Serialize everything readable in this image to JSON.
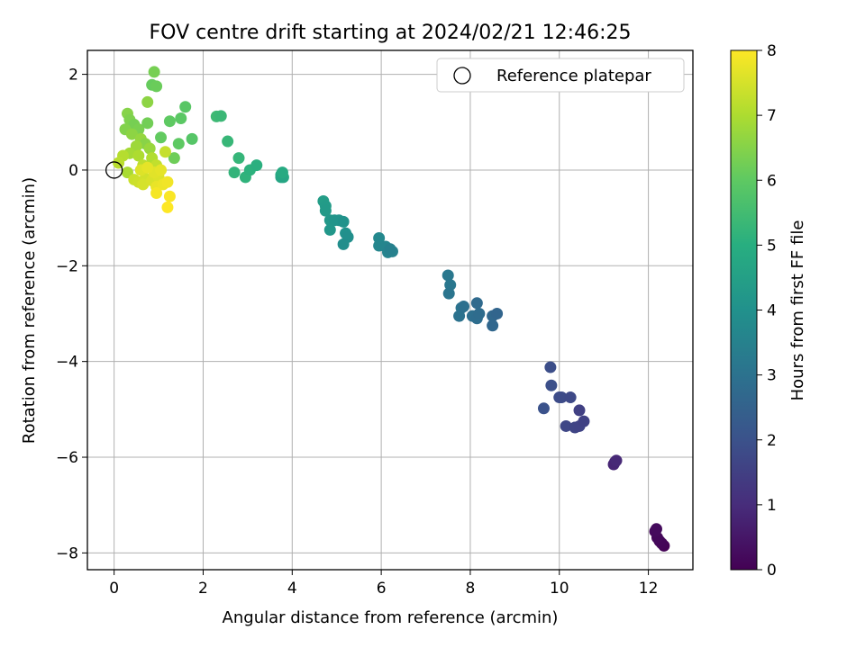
{
  "chart_data": {
    "type": "scatter",
    "title": "FOV centre drift starting at 2024/02/21 12:46:25",
    "xlabel": "Angular distance from reference (arcmin)",
    "ylabel": "Rotation from reference (arcmin)",
    "xlim": [
      -0.6,
      13.0
    ],
    "ylim": [
      -8.35,
      2.5
    ],
    "xticks": [
      0,
      2,
      4,
      6,
      8,
      10,
      12
    ],
    "xtick_labels": [
      "0",
      "2",
      "4",
      "6",
      "8",
      "10",
      "12"
    ],
    "yticks": [
      2,
      0,
      -2,
      -4,
      -6,
      -8
    ],
    "ytick_labels": [
      "2",
      "0",
      "−2",
      "−4",
      "−6",
      "−8"
    ],
    "grid": true,
    "legend": {
      "placement": "top-right",
      "entries": [
        "Reference platepar"
      ]
    },
    "reference_point": {
      "x": 0,
      "y": 0,
      "label": "Reference platepar"
    },
    "colorbar": {
      "label": "Hours from first FF file",
      "range": [
        0,
        8
      ],
      "ticks": [
        "0",
        "1",
        "2",
        "3",
        "4",
        "5",
        "6",
        "7",
        "8"
      ],
      "colormap": [
        "#440154",
        "#472d7b",
        "#3b528b",
        "#2c728e",
        "#21918c",
        "#28ae80",
        "#5ec962",
        "#addc30",
        "#fde725"
      ]
    },
    "points": [
      {
        "x": 12.35,
        "y": -7.85,
        "c": 0.05
      },
      {
        "x": 12.3,
        "y": -7.8,
        "c": 0.1
      },
      {
        "x": 12.25,
        "y": -7.75,
        "c": 0.12
      },
      {
        "x": 12.2,
        "y": -7.68,
        "c": 0.15
      },
      {
        "x": 12.15,
        "y": -7.55,
        "c": 0.2
      },
      {
        "x": 12.18,
        "y": -7.5,
        "c": 0.22
      },
      {
        "x": 11.25,
        "y": -6.1,
        "c": 0.8
      },
      {
        "x": 11.22,
        "y": -6.15,
        "c": 0.85
      },
      {
        "x": 11.28,
        "y": -6.07,
        "c": 0.9
      },
      {
        "x": 9.8,
        "y": -4.12,
        "c": 1.9
      },
      {
        "x": 9.82,
        "y": -4.5,
        "c": 1.95
      },
      {
        "x": 9.65,
        "y": -4.98,
        "c": 2.0
      },
      {
        "x": 10.0,
        "y": -4.75,
        "c": 1.85
      },
      {
        "x": 10.05,
        "y": -4.75,
        "c": 1.8
      },
      {
        "x": 10.25,
        "y": -4.75,
        "c": 1.75
      },
      {
        "x": 10.15,
        "y": -5.35,
        "c": 1.7
      },
      {
        "x": 10.35,
        "y": -5.38,
        "c": 1.65
      },
      {
        "x": 10.45,
        "y": -5.35,
        "c": 1.6
      },
      {
        "x": 10.55,
        "y": -5.25,
        "c": 1.55
      },
      {
        "x": 10.45,
        "y": -5.02,
        "c": 1.5
      },
      {
        "x": 7.5,
        "y": -2.2,
        "c": 3.2
      },
      {
        "x": 7.55,
        "y": -2.4,
        "c": 3.15
      },
      {
        "x": 7.52,
        "y": -2.58,
        "c": 3.1
      },
      {
        "x": 7.8,
        "y": -2.88,
        "c": 3.05
      },
      {
        "x": 7.75,
        "y": -3.05,
        "c": 3.0
      },
      {
        "x": 7.85,
        "y": -2.85,
        "c": 2.95
      },
      {
        "x": 8.05,
        "y": -3.05,
        "c": 2.9
      },
      {
        "x": 8.15,
        "y": -3.1,
        "c": 2.85
      },
      {
        "x": 8.2,
        "y": -3.0,
        "c": 2.8
      },
      {
        "x": 8.15,
        "y": -2.78,
        "c": 2.75
      },
      {
        "x": 8.5,
        "y": -3.05,
        "c": 2.7
      },
      {
        "x": 8.5,
        "y": -3.25,
        "c": 2.65
      },
      {
        "x": 8.6,
        "y": -3.0,
        "c": 2.6
      },
      {
        "x": 5.95,
        "y": -1.42,
        "c": 3.7
      },
      {
        "x": 5.95,
        "y": -1.58,
        "c": 3.65
      },
      {
        "x": 6.1,
        "y": -1.6,
        "c": 3.6
      },
      {
        "x": 6.15,
        "y": -1.72,
        "c": 3.55
      },
      {
        "x": 6.25,
        "y": -1.7,
        "c": 3.5
      },
      {
        "x": 6.2,
        "y": -1.65,
        "c": 3.45
      },
      {
        "x": 4.7,
        "y": -0.65,
        "c": 4.4
      },
      {
        "x": 4.75,
        "y": -0.75,
        "c": 4.35
      },
      {
        "x": 4.75,
        "y": -0.85,
        "c": 4.3
      },
      {
        "x": 4.85,
        "y": -1.05,
        "c": 4.25
      },
      {
        "x": 4.85,
        "y": -1.25,
        "c": 4.2
      },
      {
        "x": 4.95,
        "y": -1.05,
        "c": 4.15
      },
      {
        "x": 5.05,
        "y": -1.05,
        "c": 4.1
      },
      {
        "x": 5.15,
        "y": -1.08,
        "c": 4.05
      },
      {
        "x": 5.2,
        "y": -1.32,
        "c": 4.0
      },
      {
        "x": 5.25,
        "y": -1.4,
        "c": 3.95
      },
      {
        "x": 5.15,
        "y": -1.55,
        "c": 3.9
      },
      {
        "x": 3.75,
        "y": -0.1,
        "c": 4.8
      },
      {
        "x": 3.8,
        "y": -0.15,
        "c": 4.75
      },
      {
        "x": 3.75,
        "y": -0.15,
        "c": 4.7
      },
      {
        "x": 3.78,
        "y": -0.05,
        "c": 4.85
      },
      {
        "x": 2.3,
        "y": 1.12,
        "c": 5.4
      },
      {
        "x": 2.4,
        "y": 1.13,
        "c": 5.35
      },
      {
        "x": 2.55,
        "y": 0.6,
        "c": 5.3
      },
      {
        "x": 2.8,
        "y": 0.25,
        "c": 5.25
      },
      {
        "x": 2.7,
        "y": -0.05,
        "c": 5.2
      },
      {
        "x": 2.95,
        "y": -0.15,
        "c": 5.15
      },
      {
        "x": 3.05,
        "y": 0.0,
        "c": 5.1
      },
      {
        "x": 3.2,
        "y": 0.1,
        "c": 5.05
      },
      {
        "x": 0.9,
        "y": 2.05,
        "c": 6.3
      },
      {
        "x": 0.85,
        "y": 1.78,
        "c": 6.1
      },
      {
        "x": 0.95,
        "y": 1.75,
        "c": 6.15
      },
      {
        "x": 0.75,
        "y": 1.42,
        "c": 6.6
      },
      {
        "x": 1.6,
        "y": 1.32,
        "c": 5.9
      },
      {
        "x": 1.5,
        "y": 1.08,
        "c": 5.95
      },
      {
        "x": 1.25,
        "y": 1.02,
        "c": 6.0
      },
      {
        "x": 1.05,
        "y": 0.68,
        "c": 6.05
      },
      {
        "x": 1.45,
        "y": 0.55,
        "c": 6.0
      },
      {
        "x": 1.75,
        "y": 0.65,
        "c": 5.85
      },
      {
        "x": 1.35,
        "y": 0.25,
        "c": 6.2
      },
      {
        "x": 0.3,
        "y": 1.18,
        "c": 6.5
      },
      {
        "x": 0.35,
        "y": 1.05,
        "c": 6.4
      },
      {
        "x": 0.45,
        "y": 0.95,
        "c": 6.3
      },
      {
        "x": 0.55,
        "y": 0.85,
        "c": 6.35
      },
      {
        "x": 0.75,
        "y": 0.98,
        "c": 6.25
      },
      {
        "x": 0.25,
        "y": 0.85,
        "c": 6.45
      },
      {
        "x": 0.4,
        "y": 0.75,
        "c": 6.6
      },
      {
        "x": 0.6,
        "y": 0.65,
        "c": 6.7
      },
      {
        "x": 0.7,
        "y": 0.55,
        "c": 6.55
      },
      {
        "x": 0.5,
        "y": 0.5,
        "c": 6.8
      },
      {
        "x": 0.8,
        "y": 0.45,
        "c": 6.75
      },
      {
        "x": 0.35,
        "y": 0.35,
        "c": 6.9
      },
      {
        "x": 0.55,
        "y": 0.3,
        "c": 7.0
      },
      {
        "x": 0.85,
        "y": 0.25,
        "c": 7.05
      },
      {
        "x": 0.2,
        "y": 0.3,
        "c": 7.1
      },
      {
        "x": 0.1,
        "y": 0.15,
        "c": 7.15
      },
      {
        "x": 0.3,
        "y": -0.05,
        "c": 6.95
      },
      {
        "x": 0.65,
        "y": 0.1,
        "c": 7.2
      },
      {
        "x": 0.95,
        "y": 0.1,
        "c": 7.25
      },
      {
        "x": 1.15,
        "y": 0.38,
        "c": 7.3
      },
      {
        "x": 0.45,
        "y": -0.2,
        "c": 7.35
      },
      {
        "x": 0.55,
        "y": -0.25,
        "c": 7.4
      },
      {
        "x": 0.7,
        "y": -0.18,
        "c": 7.45
      },
      {
        "x": 0.65,
        "y": -0.3,
        "c": 7.5
      },
      {
        "x": 0.85,
        "y": -0.22,
        "c": 7.55
      },
      {
        "x": 1.0,
        "y": -0.15,
        "c": 7.6
      },
      {
        "x": 0.9,
        "y": -0.05,
        "c": 7.65
      },
      {
        "x": 1.05,
        "y": 0.0,
        "c": 7.7
      },
      {
        "x": 0.95,
        "y": -0.35,
        "c": 7.75
      },
      {
        "x": 1.1,
        "y": -0.3,
        "c": 7.8
      },
      {
        "x": 1.2,
        "y": -0.25,
        "c": 7.85
      },
      {
        "x": 0.95,
        "y": -0.48,
        "c": 7.9
      },
      {
        "x": 1.25,
        "y": -0.55,
        "c": 7.95
      },
      {
        "x": 1.2,
        "y": -0.78,
        "c": 8.0
      },
      {
        "x": 0.6,
        "y": 0.0,
        "c": 7.6
      },
      {
        "x": 0.75,
        "y": 0.05,
        "c": 7.7
      }
    ]
  }
}
